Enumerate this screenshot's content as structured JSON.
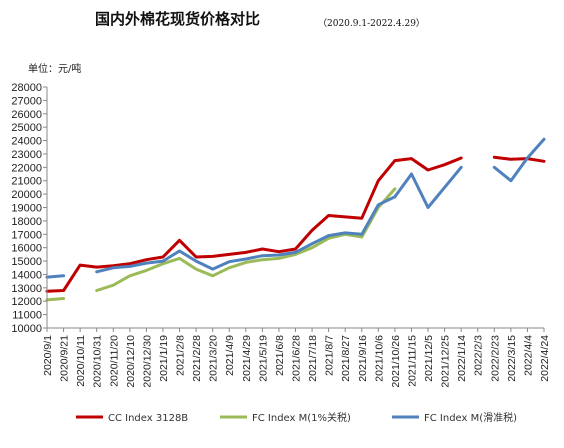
{
  "chart_data": {
    "type": "line",
    "title": "国内外棉花现货价格对比",
    "subtitle": "（2020.9.1-2022.4.29）",
    "ylabel": "单位：元/吨",
    "ylim": [
      10000,
      28000
    ],
    "yticks": [
      10000,
      11000,
      12000,
      13000,
      14000,
      15000,
      16000,
      17000,
      18000,
      19000,
      20000,
      21000,
      22000,
      23000,
      24000,
      25000,
      26000,
      27000,
      28000
    ],
    "categories": [
      "2020/9/1",
      "2020/9/21",
      "2020/10/11",
      "2020/10/31",
      "2020/11/20",
      "2020/12/10",
      "2020/12/30",
      "2021/1/19",
      "2021/2/8",
      "2021/2/28",
      "2021/3/20",
      "2021/4/9",
      "2021/4/29",
      "2021/5/19",
      "2021/6/8",
      "2021/6/28",
      "2021/7/18",
      "2021/8/7",
      "2021/8/27",
      "2021/9/16",
      "2021/10/6",
      "2021/10/26",
      "2021/11/15",
      "2021/12/5",
      "2021/12/25",
      "2022/1/14",
      "2022/2/3",
      "2022/2/23",
      "2022/3/15",
      "2022/4/4",
      "2022/4/24"
    ],
    "legend_position": "bottom",
    "grid": false,
    "series": [
      {
        "name": "CC Index 3128B",
        "color": "#c00000",
        "values": [
          12750,
          12800,
          14700,
          14550,
          14650,
          14800,
          15100,
          15300,
          16550,
          15300,
          15350,
          15500,
          15650,
          15900,
          15700,
          15900,
          17300,
          18400,
          18300,
          18200,
          21000,
          22500,
          22650,
          21800,
          22200,
          22700,
          null,
          22750,
          22600,
          22650,
          22450
        ]
      },
      {
        "name": "FC Index M(1%关税)",
        "color": "#9bbb59",
        "values": [
          12100,
          12200,
          null,
          12800,
          13200,
          13900,
          14300,
          14800,
          15200,
          14400,
          13900,
          14500,
          14900,
          15100,
          15200,
          15500,
          16000,
          16700,
          17000,
          16800,
          19000,
          20400,
          null,
          null,
          null,
          null,
          null,
          null,
          null,
          null,
          null
        ]
      },
      {
        "name": "FC Index M(滑准税)",
        "color": "#4f81bd",
        "values": [
          13800,
          13900,
          null,
          14200,
          14500,
          14600,
          14850,
          15000,
          15750,
          15000,
          14400,
          14950,
          15150,
          15400,
          15450,
          15650,
          16300,
          16900,
          17100,
          17000,
          19200,
          19800,
          21500,
          19000,
          20500,
          22000,
          null,
          22000,
          21000,
          22700,
          24100
        ]
      }
    ]
  }
}
